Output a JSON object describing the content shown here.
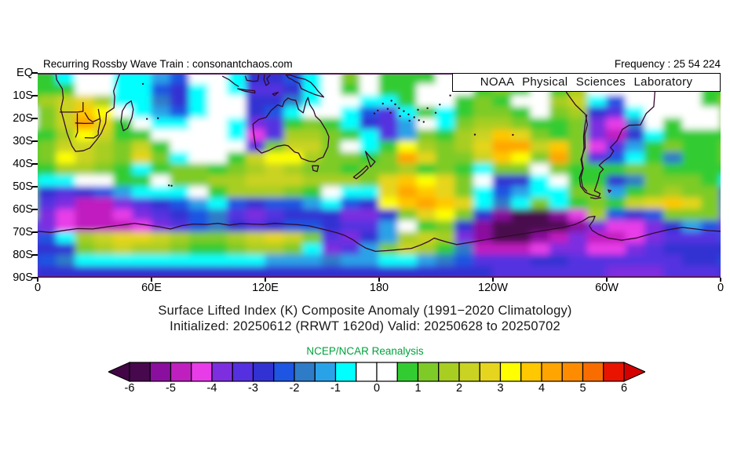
{
  "header": {
    "left": "Recurring Rossby Wave Train : consonantchaos.com",
    "right": "Frequency : 25 54 224"
  },
  "watermark": "NOAA Physical Sciences Laboratory",
  "title": {
    "line1": "Surface Lifted Index (K) Composite Anomaly (1991−2020 Climatology)",
    "line2": "Initialized: 20250612 (RRWT 1620d) Valid: 20250628 to 20250702"
  },
  "axes": {
    "y_labels": [
      "EQ",
      "10S",
      "20S",
      "30S",
      "40S",
      "50S",
      "60S",
      "70S",
      "80S",
      "90S"
    ],
    "x_labels": [
      "0",
      "60E",
      "120E",
      "180",
      "120W",
      "60W",
      "0"
    ]
  },
  "legend": {
    "title": "NCEP/NCAR Reanalysis",
    "title_color": "#00a23c",
    "tick_labels": [
      "-6",
      "-5",
      "-4",
      "-3",
      "-2",
      "-1",
      "0",
      "1",
      "2",
      "3",
      "4",
      "5",
      "6"
    ],
    "bin_start": -6,
    "bin_size": 0.5,
    "palette": [
      "#48084e",
      "#8a0f9e",
      "#c01fc0",
      "#e83ce8",
      "#7d2fe0",
      "#5530e0",
      "#3232d2",
      "#1e55e2",
      "#2e7bc8",
      "#2aa2e8",
      "#00ffff",
      "#ffffff",
      "#ffffff",
      "#32cc32",
      "#7ecb28",
      "#a8ce22",
      "#cad322",
      "#e6d51e",
      "#ffff00",
      "#ffc800",
      "#ffa400",
      "#ff8c00",
      "#f96c00",
      "#e81400"
    ],
    "arrow_left_color": "#420646",
    "arrow_right_color": "#d40000"
  },
  "chart_data": {
    "type": "heatmap",
    "variable": "Surface Lifted Index composite anomaly (K)",
    "units": "K",
    "lon_start_deg_e": 0,
    "lon_step_deg": 10,
    "lat_start_deg_s": 0,
    "lat_step_deg": 5,
    "value_range": [
      -6,
      6
    ],
    "grid": [
      [
        0.7,
        -0.7,
        0,
        0,
        -0.7,
        -0.7,
        -1.2,
        -2.2,
        0,
        0,
        -0.7,
        -2.7,
        -2.7,
        -2.2,
        -0.7,
        0,
        1.2,
        0,
        0.7,
        0.7,
        0.7,
        0,
        0,
        0.7,
        0.7,
        0.7,
        0,
        0,
        0,
        0,
        0,
        0,
        0,
        0,
        0,
        0.7
      ],
      [
        0.7,
        0.7,
        0,
        0,
        -0.7,
        -0.7,
        -2.2,
        -2.7,
        -0.7,
        0,
        -0.7,
        -3.2,
        -3.2,
        -2.7,
        -0.7,
        0,
        0.7,
        0,
        0.7,
        0.7,
        0,
        0,
        0,
        0.7,
        1.2,
        0.7,
        0,
        0.7,
        1.7,
        0,
        0,
        0,
        0,
        0,
        0,
        0.7
      ],
      [
        1.7,
        2.2,
        2.7,
        1.7,
        -0.7,
        -0.7,
        -1.7,
        -2.7,
        -0.7,
        0,
        0,
        -2.7,
        -2.7,
        -1.7,
        -0.7,
        0,
        0,
        -0.7,
        -0.7,
        0.7,
        0,
        0,
        0.7,
        1.2,
        0.7,
        0,
        0,
        1.7,
        2.2,
        -0.7,
        -2.2,
        0,
        0,
        0,
        0,
        0.7
      ],
      [
        1.2,
        2.2,
        3.7,
        3.2,
        0,
        -0.7,
        -1.2,
        -2.2,
        -0.7,
        0,
        0,
        -2.7,
        -2.2,
        -0.7,
        0,
        0,
        -0.7,
        -2.2,
        -3.2,
        -0.7,
        0.7,
        -0.7,
        0.7,
        1.2,
        1.2,
        0.7,
        0,
        1.2,
        1.7,
        -2.7,
        -3.2,
        -0.7,
        0,
        0,
        0,
        0
      ],
      [
        1.2,
        2.2,
        4.2,
        2.7,
        0.7,
        0,
        -0.7,
        -0.7,
        0,
        0,
        -0.7,
        -3.7,
        -3.2,
        0.7,
        1.2,
        0.7,
        -0.7,
        -2.7,
        -3.2,
        -1.2,
        0,
        -0.7,
        1.2,
        1.7,
        1.7,
        1.2,
        0.7,
        0.7,
        1.2,
        -3.7,
        -4.2,
        -1.7,
        0,
        0.7,
        0,
        0
      ],
      [
        0.7,
        1.7,
        3.2,
        2.2,
        0.7,
        0.7,
        0,
        0,
        0,
        0,
        -0.7,
        -4.2,
        -3.2,
        1.7,
        1.7,
        1.2,
        0.7,
        -0.7,
        -3.2,
        -1.2,
        1.2,
        0.7,
        1.7,
        2.2,
        3.7,
        2.7,
        1.2,
        0.7,
        1.2,
        -3.7,
        -4.7,
        -2.7,
        -0.7,
        0.7,
        0.7,
        0.7
      ],
      [
        1.2,
        2.2,
        2.2,
        1.7,
        1.2,
        2.2,
        0.7,
        0,
        0,
        0,
        0,
        -3.2,
        1.2,
        2.2,
        2.2,
        1.2,
        0,
        -0.7,
        0.7,
        3.2,
        1.7,
        1.2,
        1.7,
        2.7,
        4.2,
        4.2,
        2.2,
        3.7,
        1.2,
        -4.2,
        -3.2,
        -1.2,
        0.7,
        1.2,
        0.7,
        0.7
      ],
      [
        1.2,
        3.2,
        2.2,
        1.7,
        1.2,
        2.7,
        1.2,
        -0.7,
        0,
        0,
        0.7,
        2.2,
        3.2,
        3.2,
        1.7,
        1.2,
        1.2,
        0.7,
        1.2,
        4.2,
        2.7,
        1.2,
        1.2,
        2.2,
        3.7,
        3.2,
        1.2,
        4.2,
        1.2,
        -3.2,
        -2.2,
        -0.7,
        0.7,
        -1.7,
        0.7,
        0.7
      ],
      [
        0.7,
        1.7,
        1.7,
        1.2,
        0.7,
        -0.7,
        0.7,
        1.2,
        1.2,
        0.7,
        1.2,
        1.7,
        2.2,
        1.7,
        1.2,
        1.2,
        0.7,
        1.2,
        1.2,
        1.7,
        0.7,
        1.2,
        0.7,
        -0.7,
        1.2,
        1.2,
        0,
        1.2,
        0.7,
        0.7,
        0.7,
        1.2,
        1.2,
        0.7,
        0.7,
        0.7
      ],
      [
        -0.7,
        -0.7,
        0,
        0,
        0.7,
        0.7,
        0,
        1.2,
        1.2,
        1.7,
        1.7,
        2.2,
        2.2,
        2.2,
        1.7,
        1.7,
        1.7,
        1.2,
        2.7,
        3.7,
        3.2,
        2.7,
        1.2,
        0,
        -2.7,
        -2.7,
        -0.7,
        0,
        0.7,
        0.7,
        -2.7,
        -1.7,
        1.2,
        1.2,
        1.2,
        0.7
      ],
      [
        -2.7,
        -3.2,
        -2.7,
        -2.2,
        -1.2,
        -0.7,
        -0.7,
        -0.7,
        0,
        0.7,
        1.7,
        1.7,
        1.7,
        1.2,
        0.7,
        0,
        -0.7,
        -0.7,
        2.7,
        4.2,
        3.7,
        2.7,
        1.2,
        -0.7,
        -2.2,
        -1.2,
        -0.7,
        -0.7,
        1.2,
        1.2,
        -1.2,
        0.7,
        1.2,
        1.7,
        1.2,
        1.2
      ],
      [
        -3.2,
        -3.7,
        -4.7,
        -4.7,
        -3.7,
        -3.2,
        -2.7,
        -2.2,
        -1.2,
        -0.7,
        -2.2,
        -2.7,
        -2.2,
        -2.2,
        -1.2,
        -0.7,
        -2.2,
        -2.7,
        3.2,
        3.7,
        4.2,
        3.7,
        2.7,
        -0.7,
        -1.7,
        -0.7,
        1.2,
        -0.7,
        0.7,
        1.2,
        0.7,
        2.2,
        2.7,
        3.7,
        2.7,
        1.2
      ],
      [
        -3.7,
        -4.2,
        -4.7,
        -4.7,
        -4.2,
        -3.7,
        -3.2,
        -2.7,
        -2.2,
        -1.7,
        -3.2,
        -3.7,
        -3.2,
        -2.7,
        -2.7,
        -2.7,
        -3.7,
        -3.7,
        -2.7,
        1.2,
        2.7,
        3.2,
        1.2,
        -2.7,
        -5.2,
        -5.7,
        -5.7,
        -5.2,
        -4.2,
        1.7,
        -2.2,
        -2.7,
        -2.2,
        1.2,
        1.2,
        1.2
      ],
      [
        -3.7,
        -4.2,
        -4.7,
        -4.7,
        -4.7,
        -4.2,
        -3.7,
        -3.2,
        -2.2,
        -1.7,
        -2.7,
        -3.2,
        -2.7,
        -2.2,
        -2.2,
        -2.7,
        -3.2,
        -3.2,
        -1.2,
        0,
        0.7,
        1.2,
        -2.7,
        -5.2,
        -5.7,
        -5.7,
        -5.7,
        -5.7,
        -5.2,
        -3.7,
        -4.2,
        -4.2,
        -3.7,
        -2.7,
        -1.2,
        -2.2
      ],
      [
        -2.2,
        -0.7,
        1.7,
        2.2,
        2.7,
        2.7,
        2.2,
        1.7,
        1.2,
        1.2,
        1.7,
        2.2,
        2.7,
        2.2,
        1.2,
        -3.2,
        -3.7,
        -2.7,
        -1.2,
        1.7,
        2.2,
        1.7,
        -3.7,
        -5.2,
        -5.7,
        -5.7,
        -5.2,
        -4.7,
        -3.7,
        -4.7,
        -4.7,
        -4.2,
        -3.7,
        -3.2,
        -3.2,
        -3.2
      ],
      [
        -2.7,
        -2.7,
        1.2,
        1.7,
        2.2,
        1.7,
        1.7,
        1.2,
        0.7,
        0.7,
        1.2,
        1.7,
        1.7,
        1.2,
        -0.7,
        -3.7,
        -3.2,
        -1.2,
        1.2,
        2.2,
        1.7,
        0.7,
        -1.7,
        -4.7,
        -4.7,
        -4.7,
        -4.2,
        -3.7,
        -3.7,
        -4.2,
        -4.2,
        -3.7,
        -3.2,
        -2.7,
        -2.7,
        -2.7
      ],
      [
        -2.2,
        -1.7,
        -0.7,
        -0.7,
        -0.7,
        -0.7,
        -0.7,
        -0.7,
        -0.7,
        -0.7,
        -0.7,
        -0.7,
        -1.2,
        -1.2,
        -1.2,
        -1.7,
        -1.2,
        -1.2,
        -0.7,
        -0.7,
        -1.2,
        -1.7,
        -2.2,
        -3.2,
        -3.2,
        -3.2,
        -2.7,
        -2.7,
        -3.2,
        -3.2,
        -3.2,
        -3.2,
        -3.2,
        -3.2,
        -2.7,
        -2.7
      ],
      [
        -2.7,
        -2.7,
        -2.7,
        -2.7,
        -2.7,
        -2.7,
        -2.7,
        -2.7,
        -2.7,
        -2.7,
        -2.7,
        -2.7,
        -2.7,
        -2.7,
        -2.7,
        -2.7,
        -2.7,
        -2.7,
        -2.7,
        -2.7,
        -2.7,
        -2.7,
        -2.7,
        -2.7,
        -3.2,
        -3.2,
        -3.2,
        -3.2,
        -3.2,
        -3.2,
        -3.7,
        -3.7,
        -3.7,
        -3.2,
        -3.2,
        -3.2
      ]
    ]
  }
}
